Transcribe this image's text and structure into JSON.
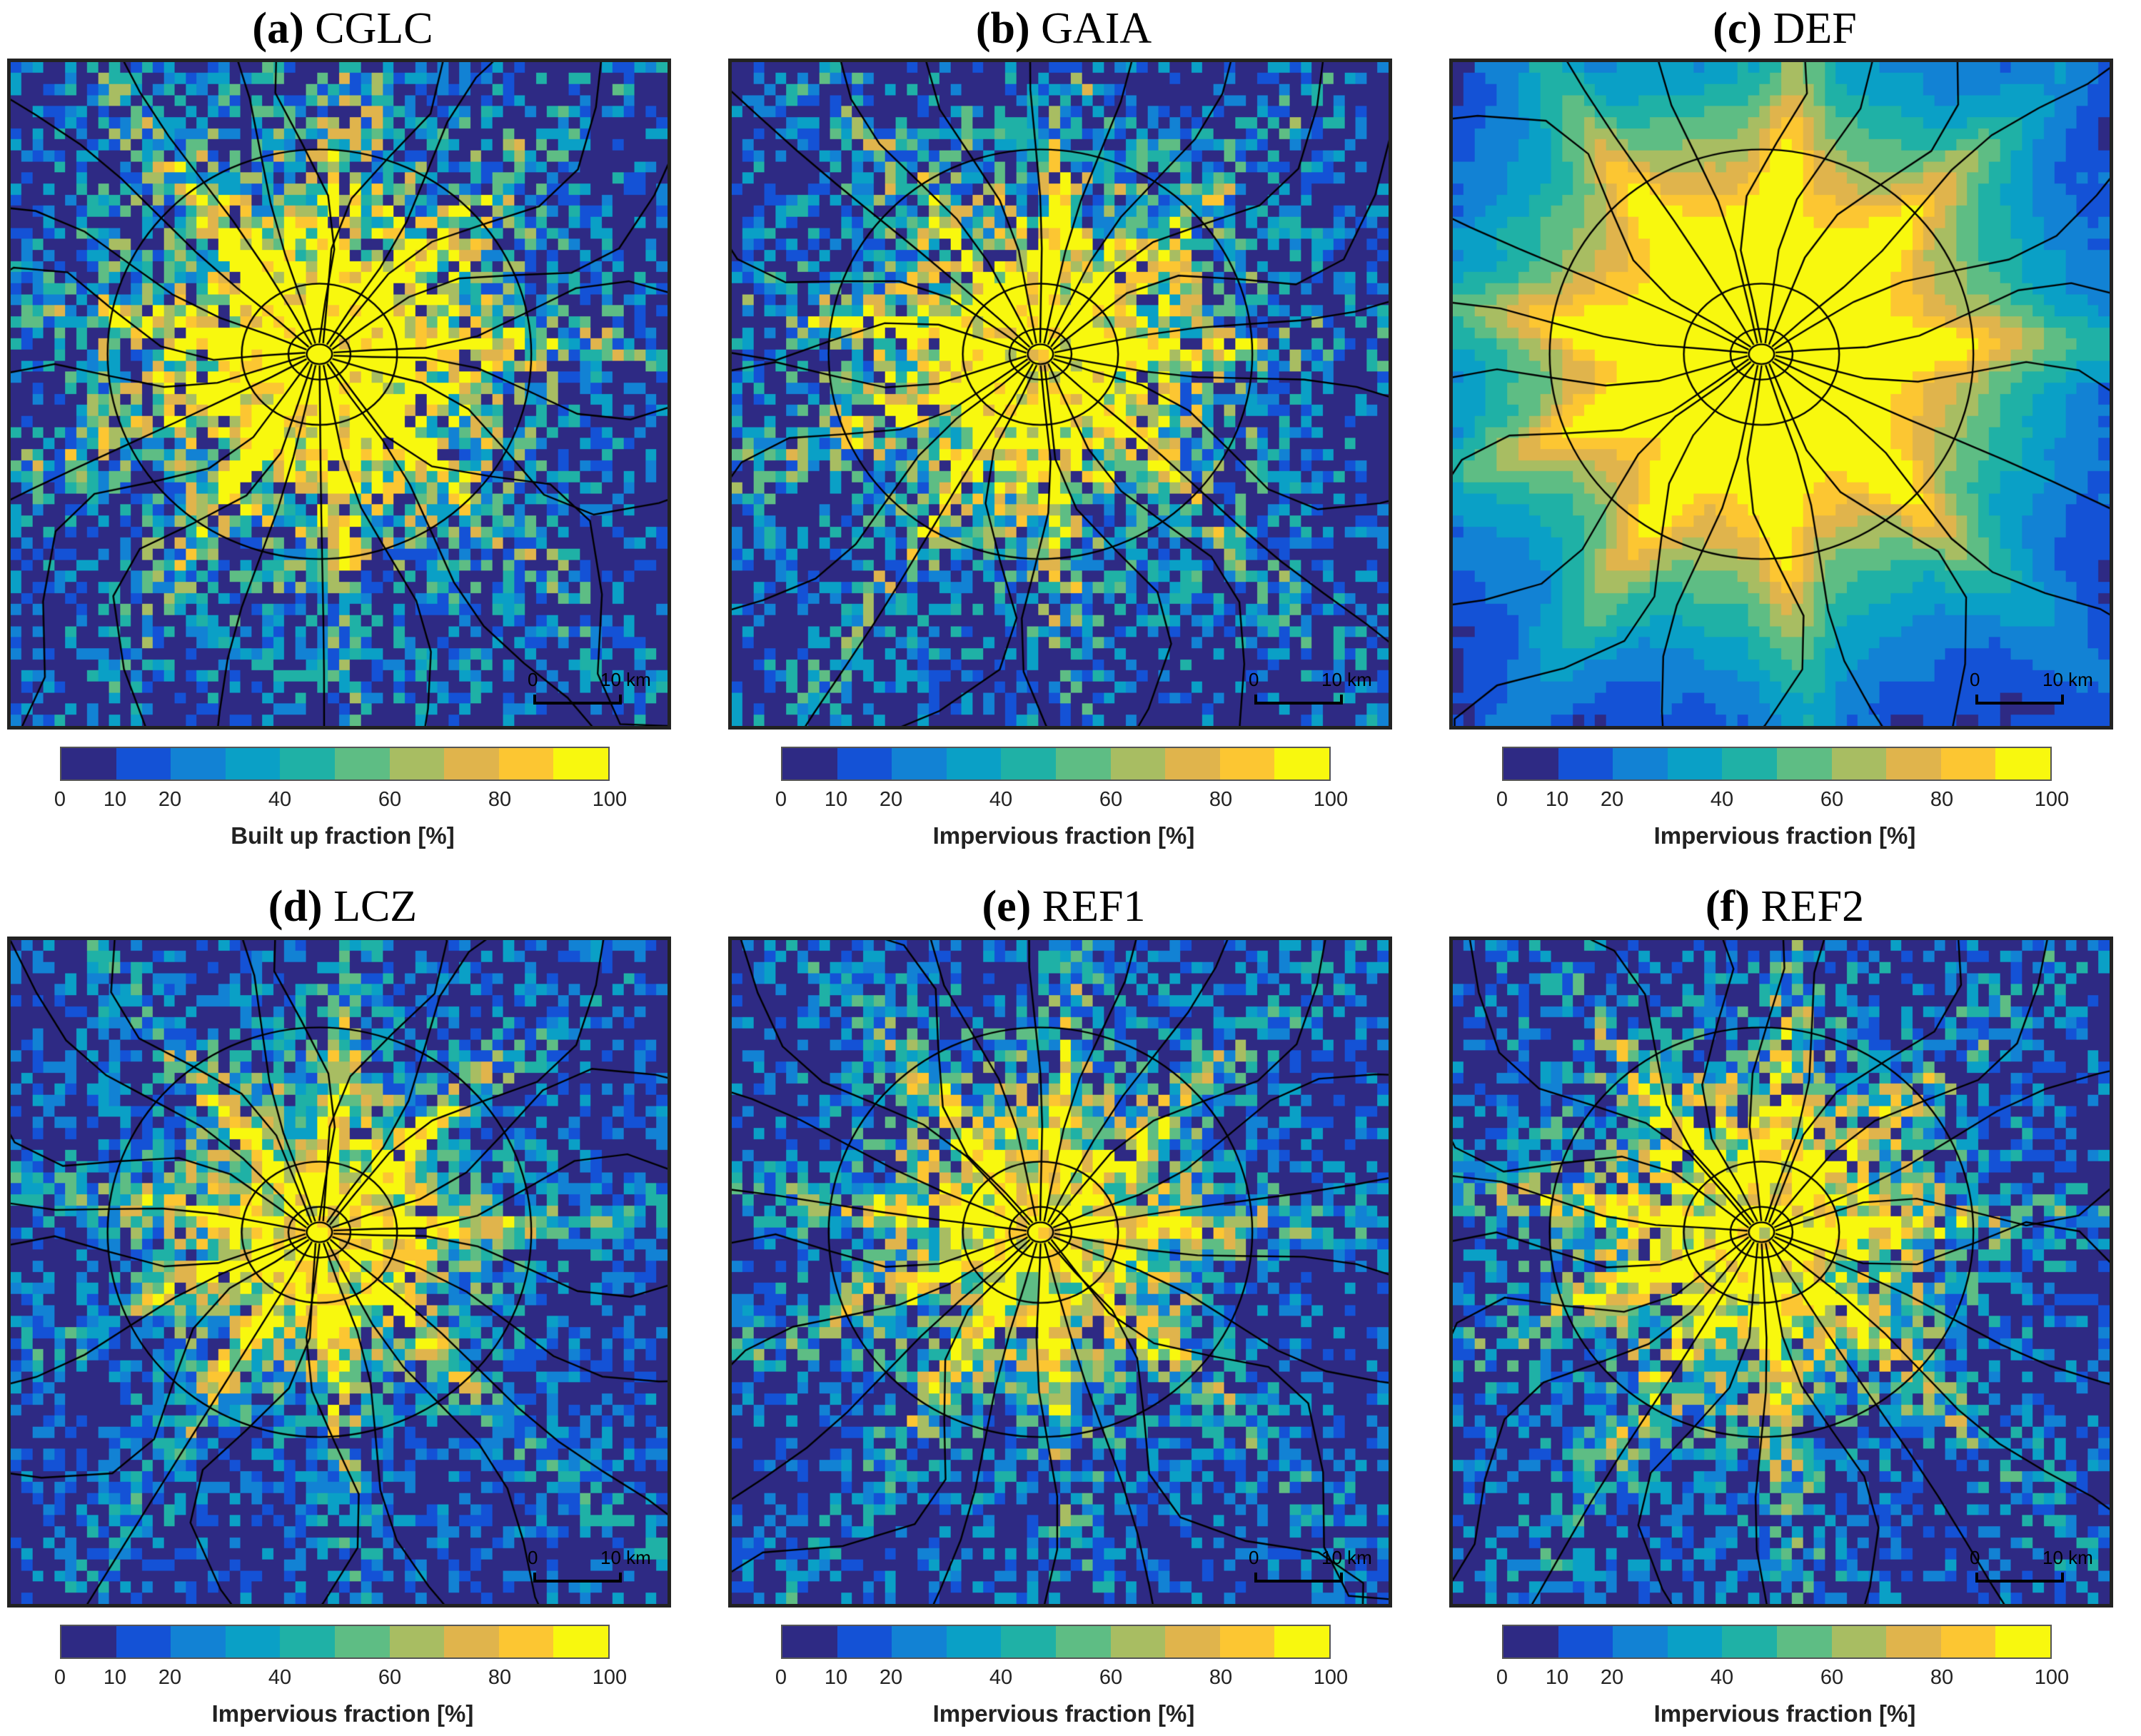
{
  "colormap": [
    "#2e2a84",
    "#1452d6",
    "#1282d4",
    "#0aa0c6",
    "#1fb1a6",
    "#5ebd84",
    "#a8bd62",
    "#e0b44c",
    "#fcc632",
    "#f8f80e"
  ],
  "colorbar_ticks": [
    "0",
    "10",
    "20",
    "40",
    "60",
    "80",
    "100"
  ],
  "scale_bar": {
    "start": "0",
    "end": "10 km"
  },
  "panels": [
    {
      "letter": "(a)",
      "name": "CGLC",
      "label": "Built up fraction [%]",
      "mean_fraction": 52,
      "center_extent": 0.3,
      "noise": 0.55,
      "blur": 0
    },
    {
      "letter": "(b)",
      "name": "GAIA",
      "label": "Impervious fraction [%]",
      "mean_fraction": 45,
      "center_extent": 0.28,
      "noise": 0.55,
      "blur": 0
    },
    {
      "letter": "(c)",
      "name": "DEF",
      "label": "Impervious fraction [%]",
      "mean_fraction": 60,
      "center_extent": 0.4,
      "noise": 0.1,
      "blur": 1
    },
    {
      "letter": "(d)",
      "name": "LCZ",
      "label": "Impervious fraction [%]",
      "mean_fraction": 30,
      "center_extent": 0.26,
      "noise": 0.45,
      "blur": 0
    },
    {
      "letter": "(e)",
      "name": "REF1",
      "label": "Impervious fraction [%]",
      "mean_fraction": 33,
      "center_extent": 0.26,
      "noise": 0.5,
      "blur": 0
    },
    {
      "letter": "(f)",
      "name": "REF2",
      "label": "Impervious fraction [%]",
      "mean_fraction": 38,
      "center_extent": 0.28,
      "noise": 0.5,
      "blur": 0
    }
  ]
}
